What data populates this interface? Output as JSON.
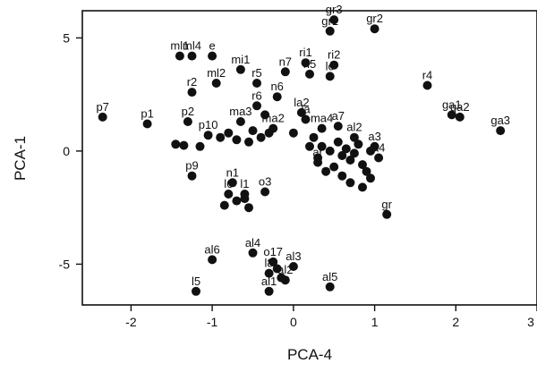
{
  "chart_data": {
    "type": "scatter",
    "title": "",
    "xlabel": "PCA-4",
    "ylabel": "PCA-1",
    "xlim": [
      -2.6,
      3.0
    ],
    "ylim": [
      -6.8,
      6.2
    ],
    "xticks": [
      -2,
      -1,
      0,
      1,
      2,
      3
    ],
    "xtick_labels": [
      "-2",
      "-1",
      "0",
      "1",
      "2",
      "3"
    ],
    "yticks": [
      -5,
      0,
      5
    ],
    "ytick_labels": [
      "-5",
      "0",
      "5"
    ],
    "grid": false,
    "legend": "none",
    "point_color": "#111111",
    "points": [
      {
        "label": "p7",
        "x": -2.35,
        "y": 1.5
      },
      {
        "label": "p1",
        "x": -1.8,
        "y": 1.2
      },
      {
        "label": "p2",
        "x": -1.3,
        "y": 1.3
      },
      {
        "label": "ml1",
        "x": -1.4,
        "y": 4.2
      },
      {
        "label": "ml4",
        "x": -1.25,
        "y": 4.2
      },
      {
        "label": "e",
        "x": -1.0,
        "y": 4.2
      },
      {
        "label": "mi1",
        "x": -0.65,
        "y": 3.6
      },
      {
        "label": "ml2",
        "x": -0.95,
        "y": 3.0
      },
      {
        "label": "r2",
        "x": -1.25,
        "y": 2.6
      },
      {
        "label": "r5",
        "x": -0.45,
        "y": 3.0
      },
      {
        "label": "n7",
        "x": -0.1,
        "y": 3.5
      },
      {
        "label": "ri1",
        "x": 0.15,
        "y": 3.9
      },
      {
        "label": "n5",
        "x": 0.2,
        "y": 3.4
      },
      {
        "label": "ri2",
        "x": 0.5,
        "y": 3.8
      },
      {
        "label": "lo",
        "x": 0.45,
        "y": 3.3
      },
      {
        "label": "gr3",
        "x": 0.5,
        "y": 5.8
      },
      {
        "label": "gr1",
        "x": 0.45,
        "y": 5.3
      },
      {
        "label": "gr2",
        "x": 1.0,
        "y": 5.4
      },
      {
        "label": "n6",
        "x": -0.2,
        "y": 2.4
      },
      {
        "label": "r6",
        "x": -0.45,
        "y": 2.0
      },
      {
        "label": "r4",
        "x": 1.65,
        "y": 2.9
      },
      {
        "label": "ga1",
        "x": 1.95,
        "y": 1.6
      },
      {
        "label": "ga2",
        "x": 2.05,
        "y": 1.5
      },
      {
        "label": "ga3",
        "x": 2.55,
        "y": 0.9
      },
      {
        "label": "p10",
        "x": -1.05,
        "y": 0.7
      },
      {
        "label": "ma3",
        "x": -0.65,
        "y": 1.3
      },
      {
        "label": "ma2",
        "x": -0.25,
        "y": 1.0
      },
      {
        "label": "la2",
        "x": 0.1,
        "y": 1.7
      },
      {
        "label": "la",
        "x": 0.15,
        "y": 1.4
      },
      {
        "label": "ma4",
        "x": 0.35,
        "y": 1.0
      },
      {
        "label": "a7",
        "x": 0.55,
        "y": 1.1
      },
      {
        "label": "al2",
        "x": 0.75,
        "y": 0.6
      },
      {
        "label": "a3",
        "x": 1.0,
        "y": 0.2
      },
      {
        "label": "a4",
        "x": 1.05,
        "y": -0.3
      },
      {
        "label": "ar",
        "x": 0.3,
        "y": -0.5
      },
      {
        "label": "p9",
        "x": -1.25,
        "y": -1.1
      },
      {
        "label": "n1",
        "x": -0.75,
        "y": -1.4
      },
      {
        "label": "l6",
        "x": -0.8,
        "y": -1.9
      },
      {
        "label": "o3",
        "x": -0.35,
        "y": -1.8
      },
      {
        "label": "l1",
        "x": -0.6,
        "y": -1.9
      },
      {
        "label": "gr",
        "x": 1.15,
        "y": -2.8
      },
      {
        "label": "al6",
        "x": -1.0,
        "y": -4.8
      },
      {
        "label": "al4",
        "x": -0.5,
        "y": -4.5
      },
      {
        "label": "o17",
        "x": -0.25,
        "y": -4.9
      },
      {
        "label": "al3",
        "x": 0.0,
        "y": -5.1
      },
      {
        "label": "l8",
        "x": -0.3,
        "y": -5.4
      },
      {
        "label": "al2",
        "x": -0.1,
        "y": -5.7
      },
      {
        "label": "al1",
        "x": -0.3,
        "y": -6.2
      },
      {
        "label": "l5",
        "x": -1.2,
        "y": -6.2
      },
      {
        "label": "al5",
        "x": 0.45,
        "y": -6.0
      },
      {
        "label": "",
        "x": -1.45,
        "y": 0.3
      },
      {
        "label": "",
        "x": -1.35,
        "y": 0.25
      },
      {
        "label": "",
        "x": -1.15,
        "y": 0.2
      },
      {
        "label": "",
        "x": -0.9,
        "y": 0.6
      },
      {
        "label": "",
        "x": -0.8,
        "y": 0.8
      },
      {
        "label": "",
        "x": -0.7,
        "y": 0.5
      },
      {
        "label": "",
        "x": -0.55,
        "y": 0.4
      },
      {
        "label": "",
        "x": -0.5,
        "y": 0.9
      },
      {
        "label": "",
        "x": -0.4,
        "y": 0.6
      },
      {
        "label": "",
        "x": -0.35,
        "y": 1.6
      },
      {
        "label": "",
        "x": -0.3,
        "y": 0.8
      },
      {
        "label": "",
        "x": 0.0,
        "y": 0.8
      },
      {
        "label": "",
        "x": 0.25,
        "y": 0.6
      },
      {
        "label": "",
        "x": 0.35,
        "y": 0.2
      },
      {
        "label": "",
        "x": 0.45,
        "y": 0.0
      },
      {
        "label": "",
        "x": 0.55,
        "y": 0.4
      },
      {
        "label": "",
        "x": 0.6,
        "y": -0.2
      },
      {
        "label": "",
        "x": 0.65,
        "y": 0.1
      },
      {
        "label": "",
        "x": 0.7,
        "y": -0.4
      },
      {
        "label": "",
        "x": 0.75,
        "y": -0.1
      },
      {
        "label": "",
        "x": 0.8,
        "y": 0.3
      },
      {
        "label": "",
        "x": 0.85,
        "y": -0.6
      },
      {
        "label": "",
        "x": 0.9,
        "y": -0.9
      },
      {
        "label": "",
        "x": 0.95,
        "y": 0.0
      },
      {
        "label": "",
        "x": 0.5,
        "y": -0.7
      },
      {
        "label": "",
        "x": 0.4,
        "y": -0.9
      },
      {
        "label": "",
        "x": 0.6,
        "y": -1.1
      },
      {
        "label": "",
        "x": 0.7,
        "y": -1.4
      },
      {
        "label": "",
        "x": 0.85,
        "y": -1.6
      },
      {
        "label": "",
        "x": 0.95,
        "y": -1.2
      },
      {
        "label": "",
        "x": 0.3,
        "y": -0.3
      },
      {
        "label": "",
        "x": 0.2,
        "y": 0.2
      },
      {
        "label": "",
        "x": -0.7,
        "y": -2.2
      },
      {
        "label": "",
        "x": -0.55,
        "y": -2.5
      },
      {
        "label": "",
        "x": -0.85,
        "y": -2.4
      },
      {
        "label": "",
        "x": -0.6,
        "y": -2.1
      },
      {
        "label": "",
        "x": -0.2,
        "y": -5.2
      },
      {
        "label": "",
        "x": -0.15,
        "y": -5.6
      }
    ]
  }
}
